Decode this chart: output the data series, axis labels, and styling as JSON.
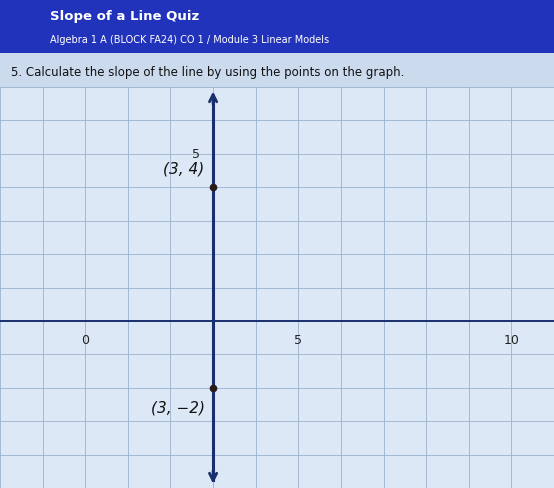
{
  "header_text": "Slope of a Line Quiz",
  "subheader_text": "Algebra 1 A (BLOCK FA24) CO 1 / Module 3 Linear Models",
  "instruction": "5. Calculate the slope of the line by using the points on the graph.",
  "header_bg": "#2233bb",
  "header_text_color": "#ffffff",
  "page_bg": "#ccdaee",
  "graph_bg": "#dce8f5",
  "grid_color": "#9ab0cc",
  "axis_color": "#1a2f6e",
  "line_color": "#1a2f6e",
  "point_color": "#2a1a1a",
  "point1": [
    3,
    4
  ],
  "point2": [
    3,
    -2
  ],
  "label1": "(3, 4)",
  "label2": "(3, −2)",
  "x_ticks": [
    0,
    5,
    10
  ],
  "y_tick_5": 5,
  "xlim": [
    -2,
    11
  ],
  "ylim": [
    -5,
    7
  ],
  "x_axis_y": 0,
  "vert_line_x": 3
}
